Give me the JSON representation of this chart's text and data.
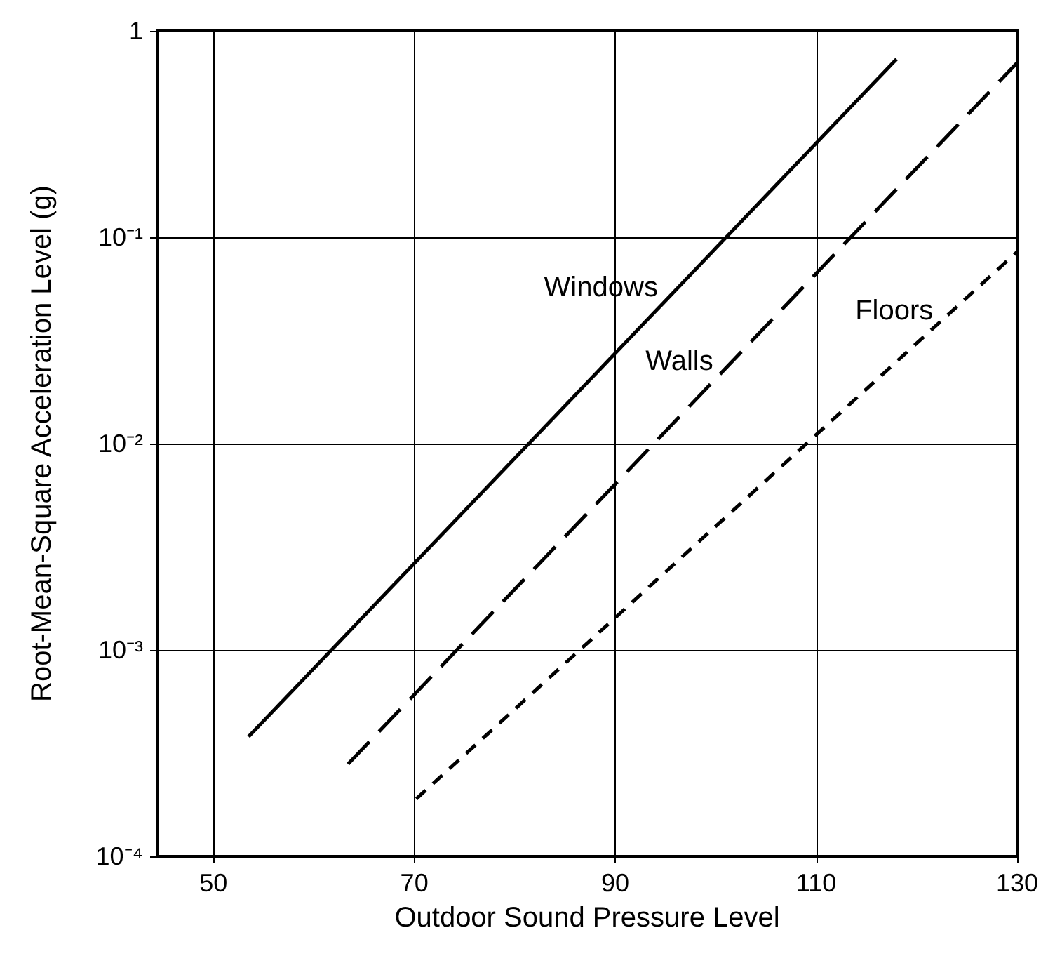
{
  "chart_data": {
    "type": "line",
    "xlabel": "Outdoor Sound Pressure Level",
    "ylabel": "Root-Mean-Square Acceleration Level (g)",
    "xlim": [
      44.4,
      130
    ],
    "xticks": [
      50,
      70,
      90,
      110,
      130
    ],
    "ylim": [
      0.0001,
      1
    ],
    "yticks": [
      {
        "value": 0.0001,
        "label": "10⁻⁴"
      },
      {
        "value": 0.001,
        "label": "10⁻³"
      },
      {
        "value": 0.01,
        "label": "10⁻²"
      },
      {
        "value": 0.1,
        "label": "10⁻¹"
      },
      1
    ],
    "log": "y",
    "grid": true,
    "marker": "none",
    "series": [
      {
        "color": "#000000",
        "line_style": "solid",
        "x": [
          53.5,
          118
        ],
        "values": [
          0.00038,
          0.73
        ]
      },
      {
        "color": "#000000",
        "line_style": "dashed",
        "x": [
          63.4,
          130
        ],
        "values": [
          0.00028,
          0.7
        ]
      },
      {
        "color": "#000000",
        "line_style": "dotted",
        "x": [
          70.2,
          130
        ],
        "values": [
          0.00019,
          0.085
        ]
      }
    ],
    "annotations": [
      {
        "text": "Windows",
        "x": 96.2,
        "y": 0.057
      },
      {
        "text": "Walls",
        "x": 101.7,
        "y": 0.025
      },
      {
        "text": "Floors",
        "x": 123.6,
        "y": 0.044
      }
    ]
  }
}
